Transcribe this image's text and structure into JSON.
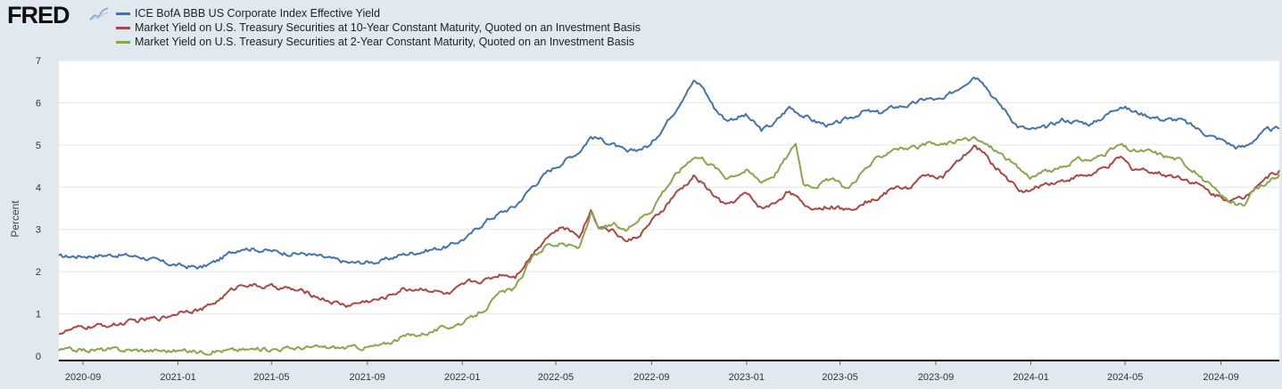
{
  "logo": {
    "text": "FRED"
  },
  "colors": {
    "series1": "#4572a7",
    "series2": "#aa4643",
    "series3": "#89a54e",
    "background": "#e1e9f0",
    "plot": "#ffffff"
  },
  "chart_data": {
    "type": "line",
    "title": "",
    "xlabel": "",
    "ylabel": "Percent",
    "ylim": [
      0,
      7
    ],
    "xlim": [
      "2020-08-01",
      "2024-11-15"
    ],
    "yticks": [
      0,
      1,
      2,
      3,
      4,
      5,
      6,
      7
    ],
    "xticks": [
      "2020-09",
      "2021-01",
      "2021-05",
      "2021-09",
      "2022-01",
      "2022-05",
      "2022-09",
      "2023-01",
      "2023-05",
      "2023-09",
      "2024-01",
      "2024-05",
      "2024-09"
    ],
    "grid": true,
    "legend": "top-left",
    "series": [
      {
        "name": "ICE BofA BBB US Corporate Index Effective Yield",
        "color": "#4572a7",
        "points": [
          [
            "2020-08-01",
            2.35
          ],
          [
            "2020-09-15",
            2.38
          ],
          [
            "2020-10-15",
            2.4
          ],
          [
            "2020-11-15",
            2.35
          ],
          [
            "2020-12-15",
            2.2
          ],
          [
            "2021-01-10",
            2.12
          ],
          [
            "2021-02-01",
            2.1
          ],
          [
            "2021-02-20",
            2.25
          ],
          [
            "2021-03-10",
            2.45
          ],
          [
            "2021-03-25",
            2.58
          ],
          [
            "2021-04-15",
            2.52
          ],
          [
            "2021-05-15",
            2.45
          ],
          [
            "2021-06-15",
            2.42
          ],
          [
            "2021-07-15",
            2.3
          ],
          [
            "2021-08-10",
            2.2
          ],
          [
            "2021-08-30",
            2.22
          ],
          [
            "2021-09-20",
            2.25
          ],
          [
            "2021-10-15",
            2.4
          ],
          [
            "2021-11-15",
            2.5
          ],
          [
            "2021-12-15",
            2.6
          ],
          [
            "2022-01-10",
            2.85
          ],
          [
            "2022-01-31",
            3.2
          ],
          [
            "2022-02-20",
            3.4
          ],
          [
            "2022-03-10",
            3.55
          ],
          [
            "2022-03-31",
            4.0
          ],
          [
            "2022-04-20",
            4.35
          ],
          [
            "2022-05-10",
            4.6
          ],
          [
            "2022-05-31",
            4.85
          ],
          [
            "2022-06-15",
            5.2
          ],
          [
            "2022-06-25",
            5.15
          ],
          [
            "2022-07-15",
            5.0
          ],
          [
            "2022-08-01",
            4.8
          ],
          [
            "2022-08-15",
            4.9
          ],
          [
            "2022-08-31",
            5.0
          ],
          [
            "2022-09-15",
            5.4
          ],
          [
            "2022-09-30",
            5.8
          ],
          [
            "2022-10-15",
            6.25
          ],
          [
            "2022-10-25",
            6.5
          ],
          [
            "2022-11-05",
            6.4
          ],
          [
            "2022-11-20",
            5.9
          ],
          [
            "2022-12-05",
            5.6
          ],
          [
            "2022-12-31",
            5.7
          ],
          [
            "2023-01-20",
            5.35
          ],
          [
            "2023-02-05",
            5.5
          ],
          [
            "2023-02-25",
            5.9
          ],
          [
            "2023-03-15",
            5.7
          ],
          [
            "2023-03-31",
            5.55
          ],
          [
            "2023-04-20",
            5.45
          ],
          [
            "2023-05-10",
            5.6
          ],
          [
            "2023-05-31",
            5.8
          ],
          [
            "2023-06-20",
            5.75
          ],
          [
            "2023-07-10",
            5.9
          ],
          [
            "2023-07-31",
            5.95
          ],
          [
            "2023-08-20",
            6.1
          ],
          [
            "2023-09-10",
            6.05
          ],
          [
            "2023-09-30",
            6.35
          ],
          [
            "2023-10-20",
            6.65
          ],
          [
            "2023-10-31",
            6.55
          ],
          [
            "2023-11-15",
            6.1
          ],
          [
            "2023-11-30",
            5.8
          ],
          [
            "2023-12-15",
            5.45
          ],
          [
            "2023-12-31",
            5.35
          ],
          [
            "2024-01-20",
            5.4
          ],
          [
            "2024-02-10",
            5.6
          ],
          [
            "2024-02-29",
            5.55
          ],
          [
            "2024-03-20",
            5.5
          ],
          [
            "2024-04-10",
            5.75
          ],
          [
            "2024-04-25",
            5.95
          ],
          [
            "2024-05-10",
            5.8
          ],
          [
            "2024-05-31",
            5.7
          ],
          [
            "2024-06-20",
            5.6
          ],
          [
            "2024-07-10",
            5.6
          ],
          [
            "2024-07-31",
            5.4
          ],
          [
            "2024-08-20",
            5.2
          ],
          [
            "2024-09-05",
            5.1
          ],
          [
            "2024-09-20",
            4.95
          ],
          [
            "2024-10-01",
            4.95
          ],
          [
            "2024-10-15",
            5.15
          ],
          [
            "2024-10-31",
            5.35
          ],
          [
            "2024-11-15",
            5.38
          ]
        ]
      },
      {
        "name": "Market Yield on U.S. Treasury Securities at 10-Year Constant Maturity, Quoted on an Investment Basis",
        "color": "#aa4643",
        "points": [
          [
            "2020-08-01",
            0.55
          ],
          [
            "2020-09-01",
            0.68
          ],
          [
            "2020-10-15",
            0.75
          ],
          [
            "2020-11-15",
            0.85
          ],
          [
            "2020-12-15",
            0.92
          ],
          [
            "2021-01-10",
            1.1
          ],
          [
            "2021-02-01",
            1.1
          ],
          [
            "2021-02-20",
            1.3
          ],
          [
            "2021-03-10",
            1.55
          ],
          [
            "2021-03-25",
            1.72
          ],
          [
            "2021-04-15",
            1.65
          ],
          [
            "2021-05-15",
            1.62
          ],
          [
            "2021-06-15",
            1.5
          ],
          [
            "2021-07-15",
            1.3
          ],
          [
            "2021-08-05",
            1.2
          ],
          [
            "2021-08-31",
            1.3
          ],
          [
            "2021-09-20",
            1.35
          ],
          [
            "2021-10-15",
            1.58
          ],
          [
            "2021-11-15",
            1.6
          ],
          [
            "2021-12-15",
            1.45
          ],
          [
            "2022-01-10",
            1.75
          ],
          [
            "2022-01-31",
            1.8
          ],
          [
            "2022-02-20",
            1.95
          ],
          [
            "2022-03-10",
            1.9
          ],
          [
            "2022-03-31",
            2.4
          ],
          [
            "2022-04-20",
            2.85
          ],
          [
            "2022-05-10",
            3.05
          ],
          [
            "2022-05-31",
            2.85
          ],
          [
            "2022-06-15",
            3.45
          ],
          [
            "2022-06-25",
            3.1
          ],
          [
            "2022-07-15",
            2.95
          ],
          [
            "2022-08-01",
            2.7
          ],
          [
            "2022-08-15",
            2.85
          ],
          [
            "2022-08-31",
            3.15
          ],
          [
            "2022-09-15",
            3.45
          ],
          [
            "2022-09-30",
            3.8
          ],
          [
            "2022-10-15",
            4.05
          ],
          [
            "2022-10-25",
            4.25
          ],
          [
            "2022-11-05",
            4.1
          ],
          [
            "2022-11-20",
            3.8
          ],
          [
            "2022-12-05",
            3.55
          ],
          [
            "2022-12-31",
            3.85
          ],
          [
            "2023-01-20",
            3.5
          ],
          [
            "2023-02-05",
            3.6
          ],
          [
            "2023-02-25",
            3.95
          ],
          [
            "2023-03-15",
            3.55
          ],
          [
            "2023-03-31",
            3.5
          ],
          [
            "2023-04-20",
            3.55
          ],
          [
            "2023-05-10",
            3.45
          ],
          [
            "2023-05-31",
            3.65
          ],
          [
            "2023-06-20",
            3.75
          ],
          [
            "2023-07-10",
            4.0
          ],
          [
            "2023-07-31",
            4.0
          ],
          [
            "2023-08-20",
            4.3
          ],
          [
            "2023-09-10",
            4.25
          ],
          [
            "2023-09-30",
            4.6
          ],
          [
            "2023-10-20",
            4.95
          ],
          [
            "2023-10-31",
            4.85
          ],
          [
            "2023-11-15",
            4.5
          ],
          [
            "2023-11-30",
            4.25
          ],
          [
            "2023-12-15",
            3.95
          ],
          [
            "2023-12-31",
            3.9
          ],
          [
            "2024-01-20",
            4.1
          ],
          [
            "2024-02-10",
            4.15
          ],
          [
            "2024-02-29",
            4.25
          ],
          [
            "2024-03-20",
            4.3
          ],
          [
            "2024-04-10",
            4.5
          ],
          [
            "2024-04-25",
            4.7
          ],
          [
            "2024-05-10",
            4.45
          ],
          [
            "2024-05-31",
            4.4
          ],
          [
            "2024-06-20",
            4.3
          ],
          [
            "2024-07-10",
            4.25
          ],
          [
            "2024-07-31",
            4.1
          ],
          [
            "2024-08-20",
            3.85
          ],
          [
            "2024-09-05",
            3.75
          ],
          [
            "2024-09-20",
            3.7
          ],
          [
            "2024-10-01",
            3.75
          ],
          [
            "2024-10-15",
            4.05
          ],
          [
            "2024-10-31",
            4.25
          ],
          [
            "2024-11-15",
            4.4
          ]
        ]
      },
      {
        "name": "Market Yield on U.S. Treasury Securities at 2-Year Constant Maturity, Quoted on an Investment Basis",
        "color": "#89a54e",
        "points": [
          [
            "2020-08-01",
            0.14
          ],
          [
            "2020-10-15",
            0.15
          ],
          [
            "2020-12-15",
            0.13
          ],
          [
            "2021-02-01",
            0.11
          ],
          [
            "2021-04-15",
            0.16
          ],
          [
            "2021-06-15",
            0.2
          ],
          [
            "2021-08-05",
            0.2
          ],
          [
            "2021-08-31",
            0.21
          ],
          [
            "2021-09-20",
            0.25
          ],
          [
            "2021-10-15",
            0.45
          ],
          [
            "2021-11-15",
            0.55
          ],
          [
            "2021-12-15",
            0.7
          ],
          [
            "2022-01-10",
            0.85
          ],
          [
            "2022-01-31",
            1.15
          ],
          [
            "2022-02-20",
            1.5
          ],
          [
            "2022-03-10",
            1.6
          ],
          [
            "2022-03-31",
            2.3
          ],
          [
            "2022-04-20",
            2.65
          ],
          [
            "2022-05-10",
            2.65
          ],
          [
            "2022-05-31",
            2.55
          ],
          [
            "2022-06-15",
            3.4
          ],
          [
            "2022-06-25",
            3.0
          ],
          [
            "2022-07-15",
            3.1
          ],
          [
            "2022-08-01",
            2.95
          ],
          [
            "2022-08-15",
            3.25
          ],
          [
            "2022-08-31",
            3.45
          ],
          [
            "2022-09-15",
            3.9
          ],
          [
            "2022-09-30",
            4.25
          ],
          [
            "2022-10-15",
            4.55
          ],
          [
            "2022-10-25",
            4.75
          ],
          [
            "2022-11-05",
            4.7
          ],
          [
            "2022-11-20",
            4.5
          ],
          [
            "2022-12-05",
            4.25
          ],
          [
            "2022-12-31",
            4.4
          ],
          [
            "2023-01-20",
            4.15
          ],
          [
            "2023-02-05",
            4.3
          ],
          [
            "2023-02-25",
            4.8
          ],
          [
            "2023-03-05",
            5.05
          ],
          [
            "2023-03-15",
            4.1
          ],
          [
            "2023-03-31",
            4.05
          ],
          [
            "2023-04-20",
            4.2
          ],
          [
            "2023-05-10",
            3.95
          ],
          [
            "2023-05-31",
            4.4
          ],
          [
            "2023-06-20",
            4.7
          ],
          [
            "2023-07-10",
            4.95
          ],
          [
            "2023-07-31",
            4.9
          ],
          [
            "2023-08-20",
            5.0
          ],
          [
            "2023-09-10",
            5.0
          ],
          [
            "2023-09-30",
            5.1
          ],
          [
            "2023-10-20",
            5.15
          ],
          [
            "2023-10-31",
            5.05
          ],
          [
            "2023-11-15",
            4.9
          ],
          [
            "2023-11-30",
            4.7
          ],
          [
            "2023-12-15",
            4.45
          ],
          [
            "2023-12-31",
            4.25
          ],
          [
            "2024-01-20",
            4.35
          ],
          [
            "2024-02-10",
            4.45
          ],
          [
            "2024-02-29",
            4.65
          ],
          [
            "2024-03-20",
            4.65
          ],
          [
            "2024-04-10",
            4.85
          ],
          [
            "2024-04-25",
            5.0
          ],
          [
            "2024-05-10",
            4.85
          ],
          [
            "2024-05-31",
            4.85
          ],
          [
            "2024-06-20",
            4.75
          ],
          [
            "2024-07-10",
            4.65
          ],
          [
            "2024-07-31",
            4.35
          ],
          [
            "2024-08-20",
            4.0
          ],
          [
            "2024-09-05",
            3.75
          ],
          [
            "2024-09-20",
            3.6
          ],
          [
            "2024-10-01",
            3.55
          ],
          [
            "2024-10-15",
            3.95
          ],
          [
            "2024-10-31",
            4.15
          ],
          [
            "2024-11-15",
            4.3
          ]
        ]
      }
    ]
  }
}
